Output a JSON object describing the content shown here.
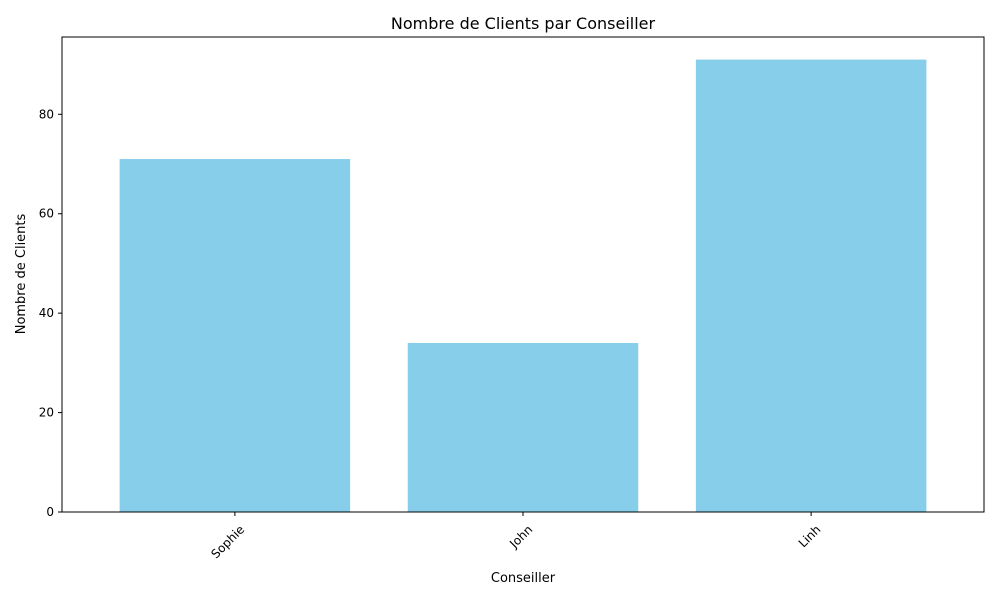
{
  "chart_data": {
    "type": "bar",
    "title": "Nombre de Clients par Conseiller",
    "xlabel": "Conseiller",
    "ylabel": "Nombre de Clients",
    "categories": [
      "Sophie",
      "John",
      "Linh"
    ],
    "values": [
      71,
      34,
      91
    ],
    "ylim": [
      0,
      95.55
    ],
    "yticks": [
      0,
      20,
      40,
      60,
      80
    ],
    "bar_color": "#87CEEB",
    "grid": false,
    "legend": "none"
  }
}
